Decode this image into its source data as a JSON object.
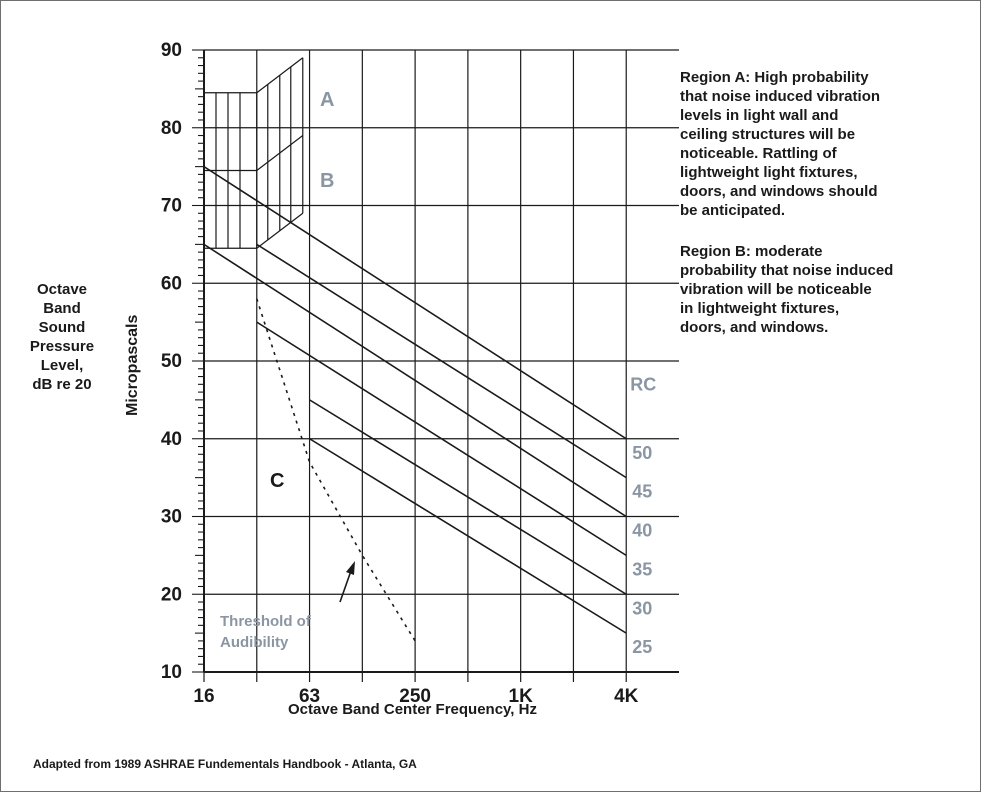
{
  "texts": {
    "ylabel_lines": [
      "Octave",
      "Band",
      "Sound",
      "Pressure",
      "Level,",
      "dB re 20"
    ],
    "ylabel_rotated": "Micropascals",
    "xlabel": "Octave Band Center Frequency, Hz",
    "footer": "Adapted from 1989 ASHRAE Fundementals Handbook - Atlanta, GA",
    "region_a_lines": [
      "Region A:   High probability",
      "that noise induced vibration",
      "levels in light wall and",
      "ceiling structures will be",
      "noticeable. Rattling of",
      "lightweight light fixtures,",
      "doors, and windows should",
      "be anticipated."
    ],
    "region_b_lines": [
      "Region B:   moderate",
      "probability that noise induced",
      "vibration will be noticeable",
      "in lightweight fixtures,",
      "doors, and windows."
    ]
  },
  "chart_data": {
    "type": "line",
    "xlabel": "Octave Band Center Frequency, Hz",
    "ylabel": "Octave Band Sound Pressure Level, dB re 20 Micropascals",
    "x_categories": [
      "16",
      "31.5",
      "63",
      "125",
      "250",
      "500",
      "1K",
      "2K",
      "4K"
    ],
    "x_tick_labels": [
      "16",
      "63",
      "250",
      "1K",
      "4K"
    ],
    "y_ticks": [
      10,
      20,
      30,
      40,
      50,
      60,
      70,
      80,
      90
    ],
    "ylim": [
      10,
      90
    ],
    "grid": true,
    "rc_header": "RC",
    "series": [
      {
        "name": "50",
        "x": [
          "16",
          "4K"
        ],
        "y": [
          75,
          40
        ]
      },
      {
        "name": "45",
        "x": [
          "31.5",
          "4K"
        ],
        "y": [
          65,
          35
        ]
      },
      {
        "name": "40",
        "x": [
          "16",
          "4K"
        ],
        "y": [
          65,
          30
        ]
      },
      {
        "name": "35",
        "x": [
          "31.5",
          "4K"
        ],
        "y": [
          55,
          25
        ]
      },
      {
        "name": "30",
        "x": [
          "63",
          "4K"
        ],
        "y": [
          45,
          20
        ]
      },
      {
        "name": "25",
        "x": [
          "63",
          "4K"
        ],
        "y": [
          40,
          15
        ]
      }
    ],
    "threshold": {
      "label_lines": [
        "Threshold of",
        "Audibility"
      ],
      "x": [
        "31.5",
        "63",
        "125",
        "250"
      ],
      "y": [
        58,
        37,
        25,
        14
      ]
    },
    "regions": [
      {
        "label": "A",
        "floor": 84.5
      },
      {
        "label": "B",
        "floor": 74.5
      },
      {
        "label": "C"
      }
    ],
    "colors": {
      "line": "#1a1a1a",
      "grid": "#1a1a1a",
      "label_gray": "#8a96a3"
    }
  }
}
